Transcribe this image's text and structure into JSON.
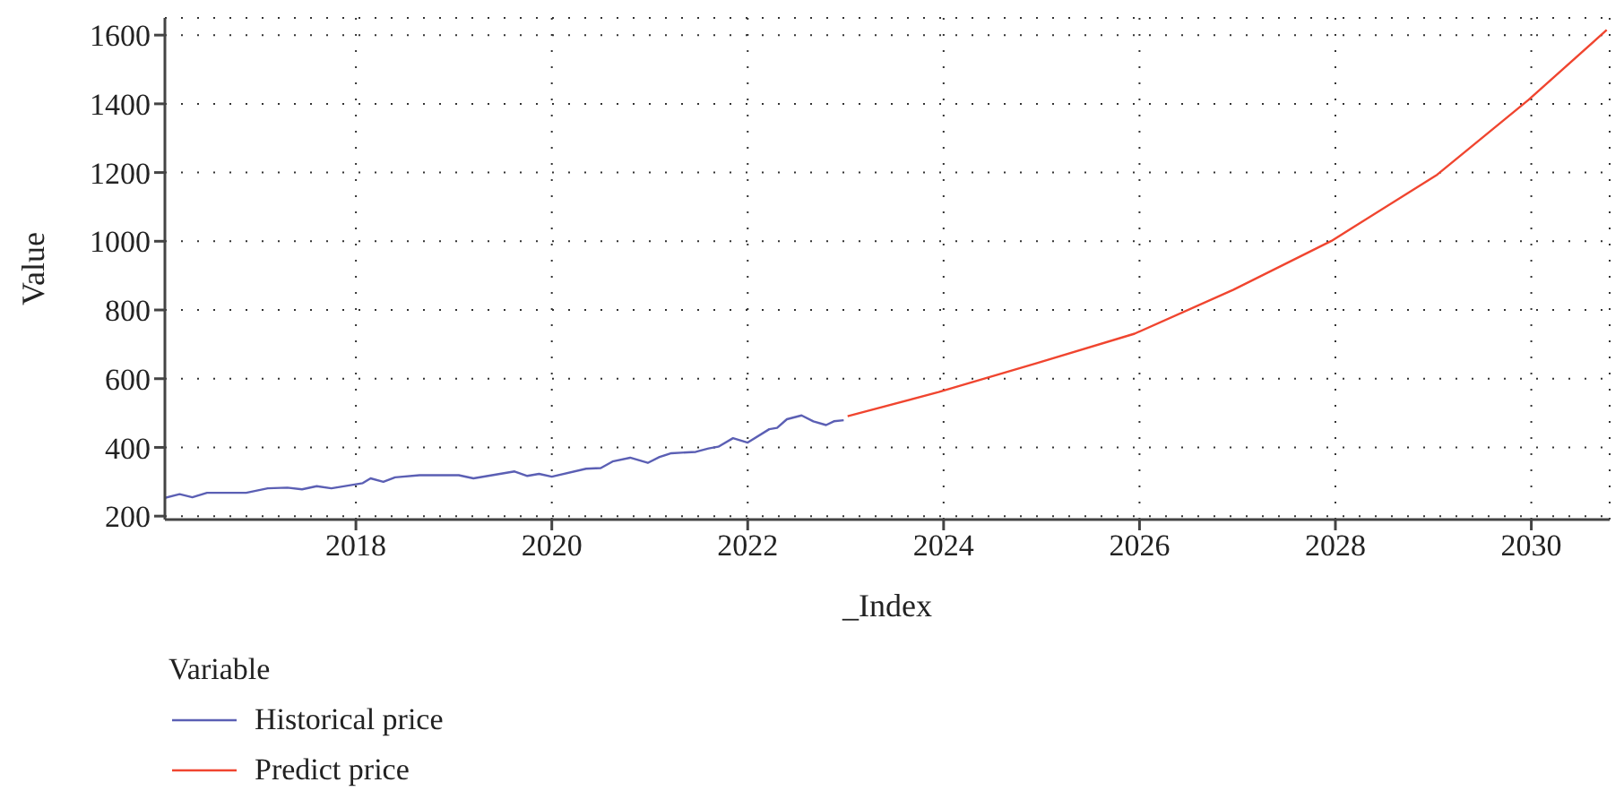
{
  "chart_data": {
    "type": "line",
    "xlabel": "_Index",
    "ylabel": "Value",
    "legend_title": "Variable",
    "legend": "bottom left",
    "grid": true,
    "marker": "none",
    "line_style": "solid",
    "xlim": [
      2016.05,
      2030.8
    ],
    "xticks": [
      2018,
      2020,
      2022,
      2024,
      2026,
      2028,
      2030
    ],
    "ylim": [
      190,
      1650
    ],
    "yticks": [
      200,
      400,
      600,
      800,
      1000,
      1200,
      1400,
      1600
    ],
    "series": [
      {
        "name": "Historical price",
        "color": "#5b5fb4",
        "x": [
          2016.05,
          2016.2,
          2016.33,
          2016.48,
          2016.88,
          2017.1,
          2017.3,
          2017.45,
          2017.6,
          2017.75,
          2018.07,
          2018.15,
          2018.28,
          2018.4,
          2018.65,
          2019.05,
          2019.2,
          2019.62,
          2019.75,
          2019.87,
          2020.0,
          2020.35,
          2020.5,
          2020.62,
          2020.8,
          2020.98,
          2021.1,
          2021.22,
          2021.47,
          2021.6,
          2021.7,
          2021.85,
          2022.0,
          2022.22,
          2022.3,
          2022.4,
          2022.55,
          2022.67,
          2022.8,
          2022.88,
          2022.98
        ],
        "values": [
          253,
          264,
          255,
          268,
          268,
          281,
          283,
          278,
          287,
          281,
          296,
          310,
          300,
          313,
          319,
          319,
          310,
          330,
          317,
          323,
          315,
          338,
          340,
          359,
          370,
          355,
          372,
          383,
          387,
          397,
          402,
          427,
          414,
          453,
          457,
          482,
          493,
          476,
          465,
          476,
          479
        ]
      },
      {
        "name": "Predict price",
        "color": "#f0452f",
        "x": [
          2023.02,
          2023.95,
          2024.96,
          2025.95,
          2026.96,
          2027.96,
          2029.04,
          2029.97,
          2030.77
        ],
        "values": [
          491,
          561,
          646,
          731,
          859,
          1001,
          1194,
          1411,
          1615
        ]
      }
    ]
  }
}
